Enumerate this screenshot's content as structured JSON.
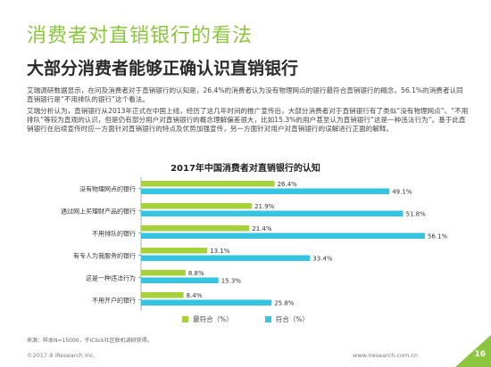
{
  "page": {
    "title": "消费者对直销银行的看法",
    "subtitle": "大部分消费者能够正确认识直销银行",
    "paragraph1": "艾瑞调研数据显示，在问及消费者对于直销银行的认知是，26.4%的消费者认为没有物理网点的银行最符合直销银行的概念，56.1%的消费者认同直销银行是“不用排队的银行”这个看法。",
    "paragraph2": "艾瑞分析认为，直销银行从2013年正式在中国上线，经历了这几年时间的推广宣传后，大部分消费者对于直销银行有了类似“没有物理网点”、“不用排队”等较为直观的认识，但是仍有部分用户对直销银行的概念理解偏差很大，比如15.3%的用户甚至认为直销银行“这是一种违法行为”。基于此直销银行在后续宣传时应一方面针对直销银行的特点及优势加强宣传，另一方面针对用户对直销银行的误解进行正面的解释。",
    "source": "来源：样本N=15000，于iClick社区联机调研获得。",
    "footer_left": "©2017.9 iResearch Inc.",
    "footer_right": "www.iresearch.com.cn",
    "page_number": "16"
  },
  "colors": {
    "green": "#a6d13a",
    "blue": "#36c5e0",
    "title_green": "#8cc63f"
  },
  "chart_data": {
    "type": "bar",
    "orientation": "horizontal",
    "title": "2017年中国消费者对直销银行的认知",
    "categories": [
      "没有物理网点的银行",
      "通过网上买理财产品的银行",
      "不用排队的银行",
      "有专人为我服务的银行",
      "这是一种违法行为",
      "不用开户的银行"
    ],
    "series": [
      {
        "name": "最符合（%）",
        "color": "#a6d13a",
        "values": [
          26.4,
          21.9,
          21.4,
          13.1,
          8.8,
          8.4
        ]
      },
      {
        "name": "符合（%）",
        "color": "#36c5e0",
        "values": [
          49.1,
          51.8,
          56.1,
          33.4,
          15.3,
          25.8
        ]
      }
    ],
    "value_labels": {
      "green": [
        "26.4%",
        "21.9%",
        "21.4%",
        "13.1%",
        "8.8%",
        "8.4%"
      ],
      "blue": [
        "49.1%",
        "51.8%",
        "56.1%",
        "33.4%",
        "15.3%",
        "25.8%"
      ]
    },
    "xlim": [
      0,
      60
    ],
    "grid": false,
    "legend": "bottom"
  }
}
